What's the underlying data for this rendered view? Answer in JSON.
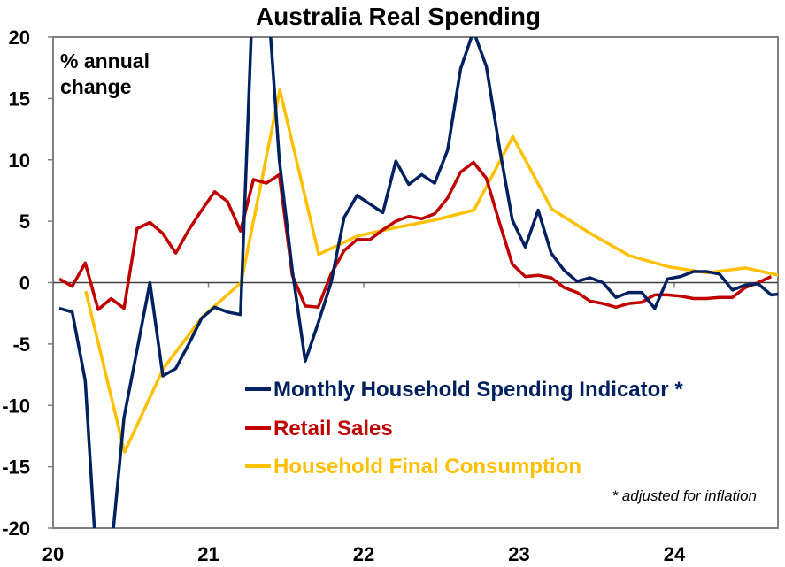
{
  "chart_data": {
    "type": "line",
    "title": "Australia Real Spending",
    "ylabel_lines": [
      "% annual",
      "change"
    ],
    "xlabel": "",
    "ylim": [
      -20,
      20
    ],
    "yticks": [
      20,
      15,
      10,
      5,
      0,
      -5,
      -10,
      -15,
      -20
    ],
    "xlim": [
      2020.0,
      2024.67
    ],
    "xticks": [
      {
        "value": 2020,
        "label": "20"
      },
      {
        "value": 2021,
        "label": "21"
      },
      {
        "value": 2022,
        "label": "22"
      },
      {
        "value": 2023,
        "label": "23"
      },
      {
        "value": 2024,
        "label": "24"
      }
    ],
    "grid": false,
    "legend_position": "bottom-center",
    "note": "* adjusted for inflation",
    "series": [
      {
        "name": "Monthly Household Spending Indicator *",
        "color": "#002060",
        "frequency": "monthly",
        "start": 2020.04,
        "values": [
          -2.1,
          -2.4,
          -8,
          -25,
          -22,
          -11,
          -5.5,
          0,
          -7.6,
          -7,
          -5,
          -2.9,
          -2,
          -2.4,
          -2.6,
          25,
          25,
          10,
          1,
          -6.4,
          -3.3,
          0,
          5.3,
          7.1,
          6.4,
          5.7,
          9.9,
          8,
          8.8,
          8.1,
          10.8,
          17.4,
          20.5,
          17.6,
          11,
          5.1,
          2.9,
          5.9,
          2.4,
          1,
          0.1,
          0.4,
          0,
          -1.2,
          -0.8,
          -0.8,
          -2.1,
          0.3,
          0.5,
          0.9,
          0.9,
          0.7,
          -0.6,
          -0.2,
          -0.1,
          -1,
          -0.9
        ]
      },
      {
        "name": "Retail Sales",
        "color": "#C00000",
        "frequency": "monthly",
        "start": 2020.04,
        "values": [
          0.3,
          -0.3,
          1.6,
          -2.2,
          -1.3,
          -2.1,
          4.4,
          4.9,
          4.0,
          2.4,
          4.3,
          5.9,
          7.4,
          6.6,
          4.2,
          8.4,
          8.1,
          8.8,
          0.6,
          -1.9,
          -2.0,
          0.7,
          2.6,
          3.5,
          3.5,
          4.3,
          5.0,
          5.4,
          5.2,
          5.6,
          6.9,
          9.0,
          9.8,
          8.5,
          4.9,
          1.5,
          0.5,
          0.6,
          0.4,
          -0.4,
          -0.8,
          -1.5,
          -1.7,
          -2.0,
          -1.7,
          -1.6,
          -1.0,
          -1.0,
          -1.1,
          -1.3,
          -1.3,
          -1.2,
          -1.2,
          -0.4,
          0.0,
          0.5
        ]
      },
      {
        "name": "Household Final Consumption",
        "color": "#FFC000",
        "frequency": "quarterly",
        "start": 2020.21,
        "values": [
          -0.7,
          -13.8,
          -7,
          -2.8,
          0,
          15.7,
          2.3,
          3.8,
          4.5,
          5.1,
          5.9,
          11.9,
          6,
          4.0,
          2.2,
          1.3,
          0.8,
          1.2,
          0.5
        ]
      }
    ]
  }
}
